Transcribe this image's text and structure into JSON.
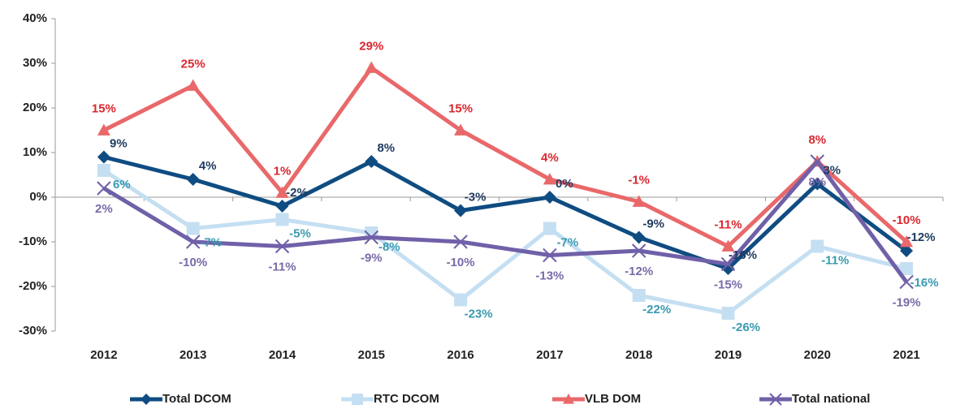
{
  "chart_data": {
    "type": "line",
    "categories": [
      "2012",
      "2013",
      "2014",
      "2015",
      "2016",
      "2017",
      "2018",
      "2019",
      "2020",
      "2021"
    ],
    "ylim": [
      -30,
      40
    ],
    "yticks": [
      {
        "value": -30,
        "label": "-30%"
      },
      {
        "value": -20,
        "label": "-20%"
      },
      {
        "value": -10,
        "label": "-10%"
      },
      {
        "value": 0,
        "label": "0%"
      },
      {
        "value": 10,
        "label": "10%"
      },
      {
        "value": 20,
        "label": "20%"
      },
      {
        "value": 30,
        "label": "30%"
      },
      {
        "value": 40,
        "label": "40%"
      }
    ],
    "legend": "bottom",
    "series": [
      {
        "name": "Total DCOM",
        "color": "#0f4c81",
        "marker": "diamond",
        "label_color": "#1f3a5f",
        "values": [
          9,
          4,
          -2,
          8,
          -3,
          0,
          -9,
          -16,
          3,
          -12
        ],
        "value_labels": [
          "9%",
          "4%",
          "-2%",
          "8%",
          "-3%",
          "0%",
          "-9%",
          "-16%",
          "3%",
          "-12%"
        ]
      },
      {
        "name": "RTC DCOM",
        "color": "#c5dff2",
        "marker": "square",
        "label_color": "#3a9ab0",
        "values": [
          6,
          -7,
          -5,
          -8,
          -23,
          -7,
          -22,
          -26,
          -11,
          -16
        ],
        "value_labels": [
          "6%",
          "-7%",
          "-5%",
          "-8%",
          "-23%",
          "-7%",
          "-22%",
          "-26%",
          "-11%",
          "-16%"
        ]
      },
      {
        "name": "VLB DOM",
        "color": "#e9686a",
        "marker": "triangle",
        "label_color": "#d9272e",
        "values": [
          15,
          25,
          1,
          29,
          15,
          4,
          -1,
          -11,
          8,
          -10
        ],
        "value_labels": [
          "15%",
          "25%",
          "1%",
          "29%",
          "15%",
          "4%",
          "-1%",
          "-11%",
          "8%",
          "-10%"
        ]
      },
      {
        "name": "Total national",
        "color": "#7060a8",
        "marker": "x",
        "label_color": "#7a6aa8",
        "values": [
          2,
          -10,
          -11,
          -9,
          -10,
          -13,
          -12,
          -15,
          8,
          -19
        ],
        "value_labels": [
          "2%",
          "-10%",
          "-11%",
          "-9%",
          "-10%",
          "-13%",
          "-12%",
          "-15%",
          "8%",
          "-19%"
        ]
      }
    ]
  }
}
